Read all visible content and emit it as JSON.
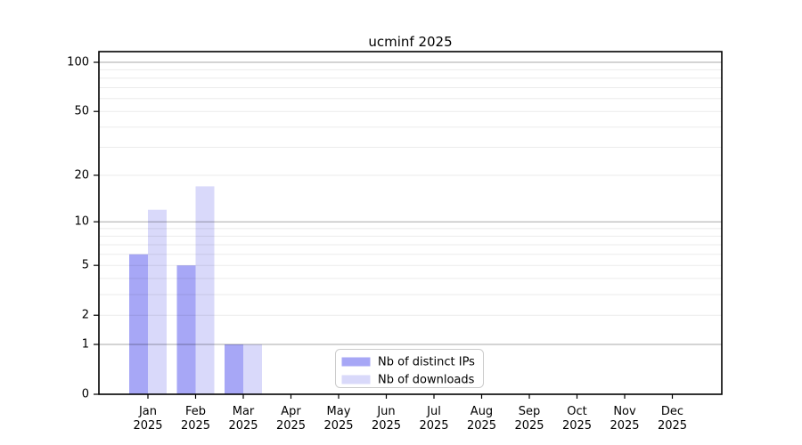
{
  "chart_data": {
    "type": "bar",
    "title": "ucminf 2025",
    "categories": [
      "Jan",
      "Feb",
      "Mar",
      "Apr",
      "May",
      "Jun",
      "Jul",
      "Aug",
      "Sep",
      "Oct",
      "Nov",
      "Dec"
    ],
    "category_sublabel": "2025",
    "series": [
      {
        "name": "Nb of distinct IPs",
        "color": "#a7a7f6",
        "values": [
          6,
          5,
          1,
          0,
          0,
          0,
          0,
          0,
          0,
          0,
          0,
          0
        ]
      },
      {
        "name": "Nb of downloads",
        "color": "#d9d9fa",
        "values": [
          12,
          17,
          1,
          0,
          0,
          0,
          0,
          0,
          0,
          0,
          0,
          0
        ]
      }
    ],
    "y_scale": "log1p",
    "y_axis": {
      "tick_values": [
        0,
        1,
        2,
        5,
        10,
        20,
        50,
        100
      ],
      "major_grid_values": [
        1,
        10,
        100
      ],
      "minor_grid_values": [
        2,
        3,
        4,
        5,
        6,
        7,
        8,
        9,
        20,
        30,
        40,
        50,
        60,
        70,
        80,
        90
      ]
    },
    "xlabel": "",
    "ylabel": "",
    "grid": true,
    "legend_position": "bottom-center"
  },
  "style": {
    "background": "#ffffff",
    "axis_color": "#000000",
    "text_color": "#000000",
    "major_grid_color": "rgba(0,0,0,0.34)",
    "minor_grid_color": "rgba(0,0,0,0.08)",
    "legend_border_color": "#cccccc",
    "legend_background": "#ffffff"
  }
}
